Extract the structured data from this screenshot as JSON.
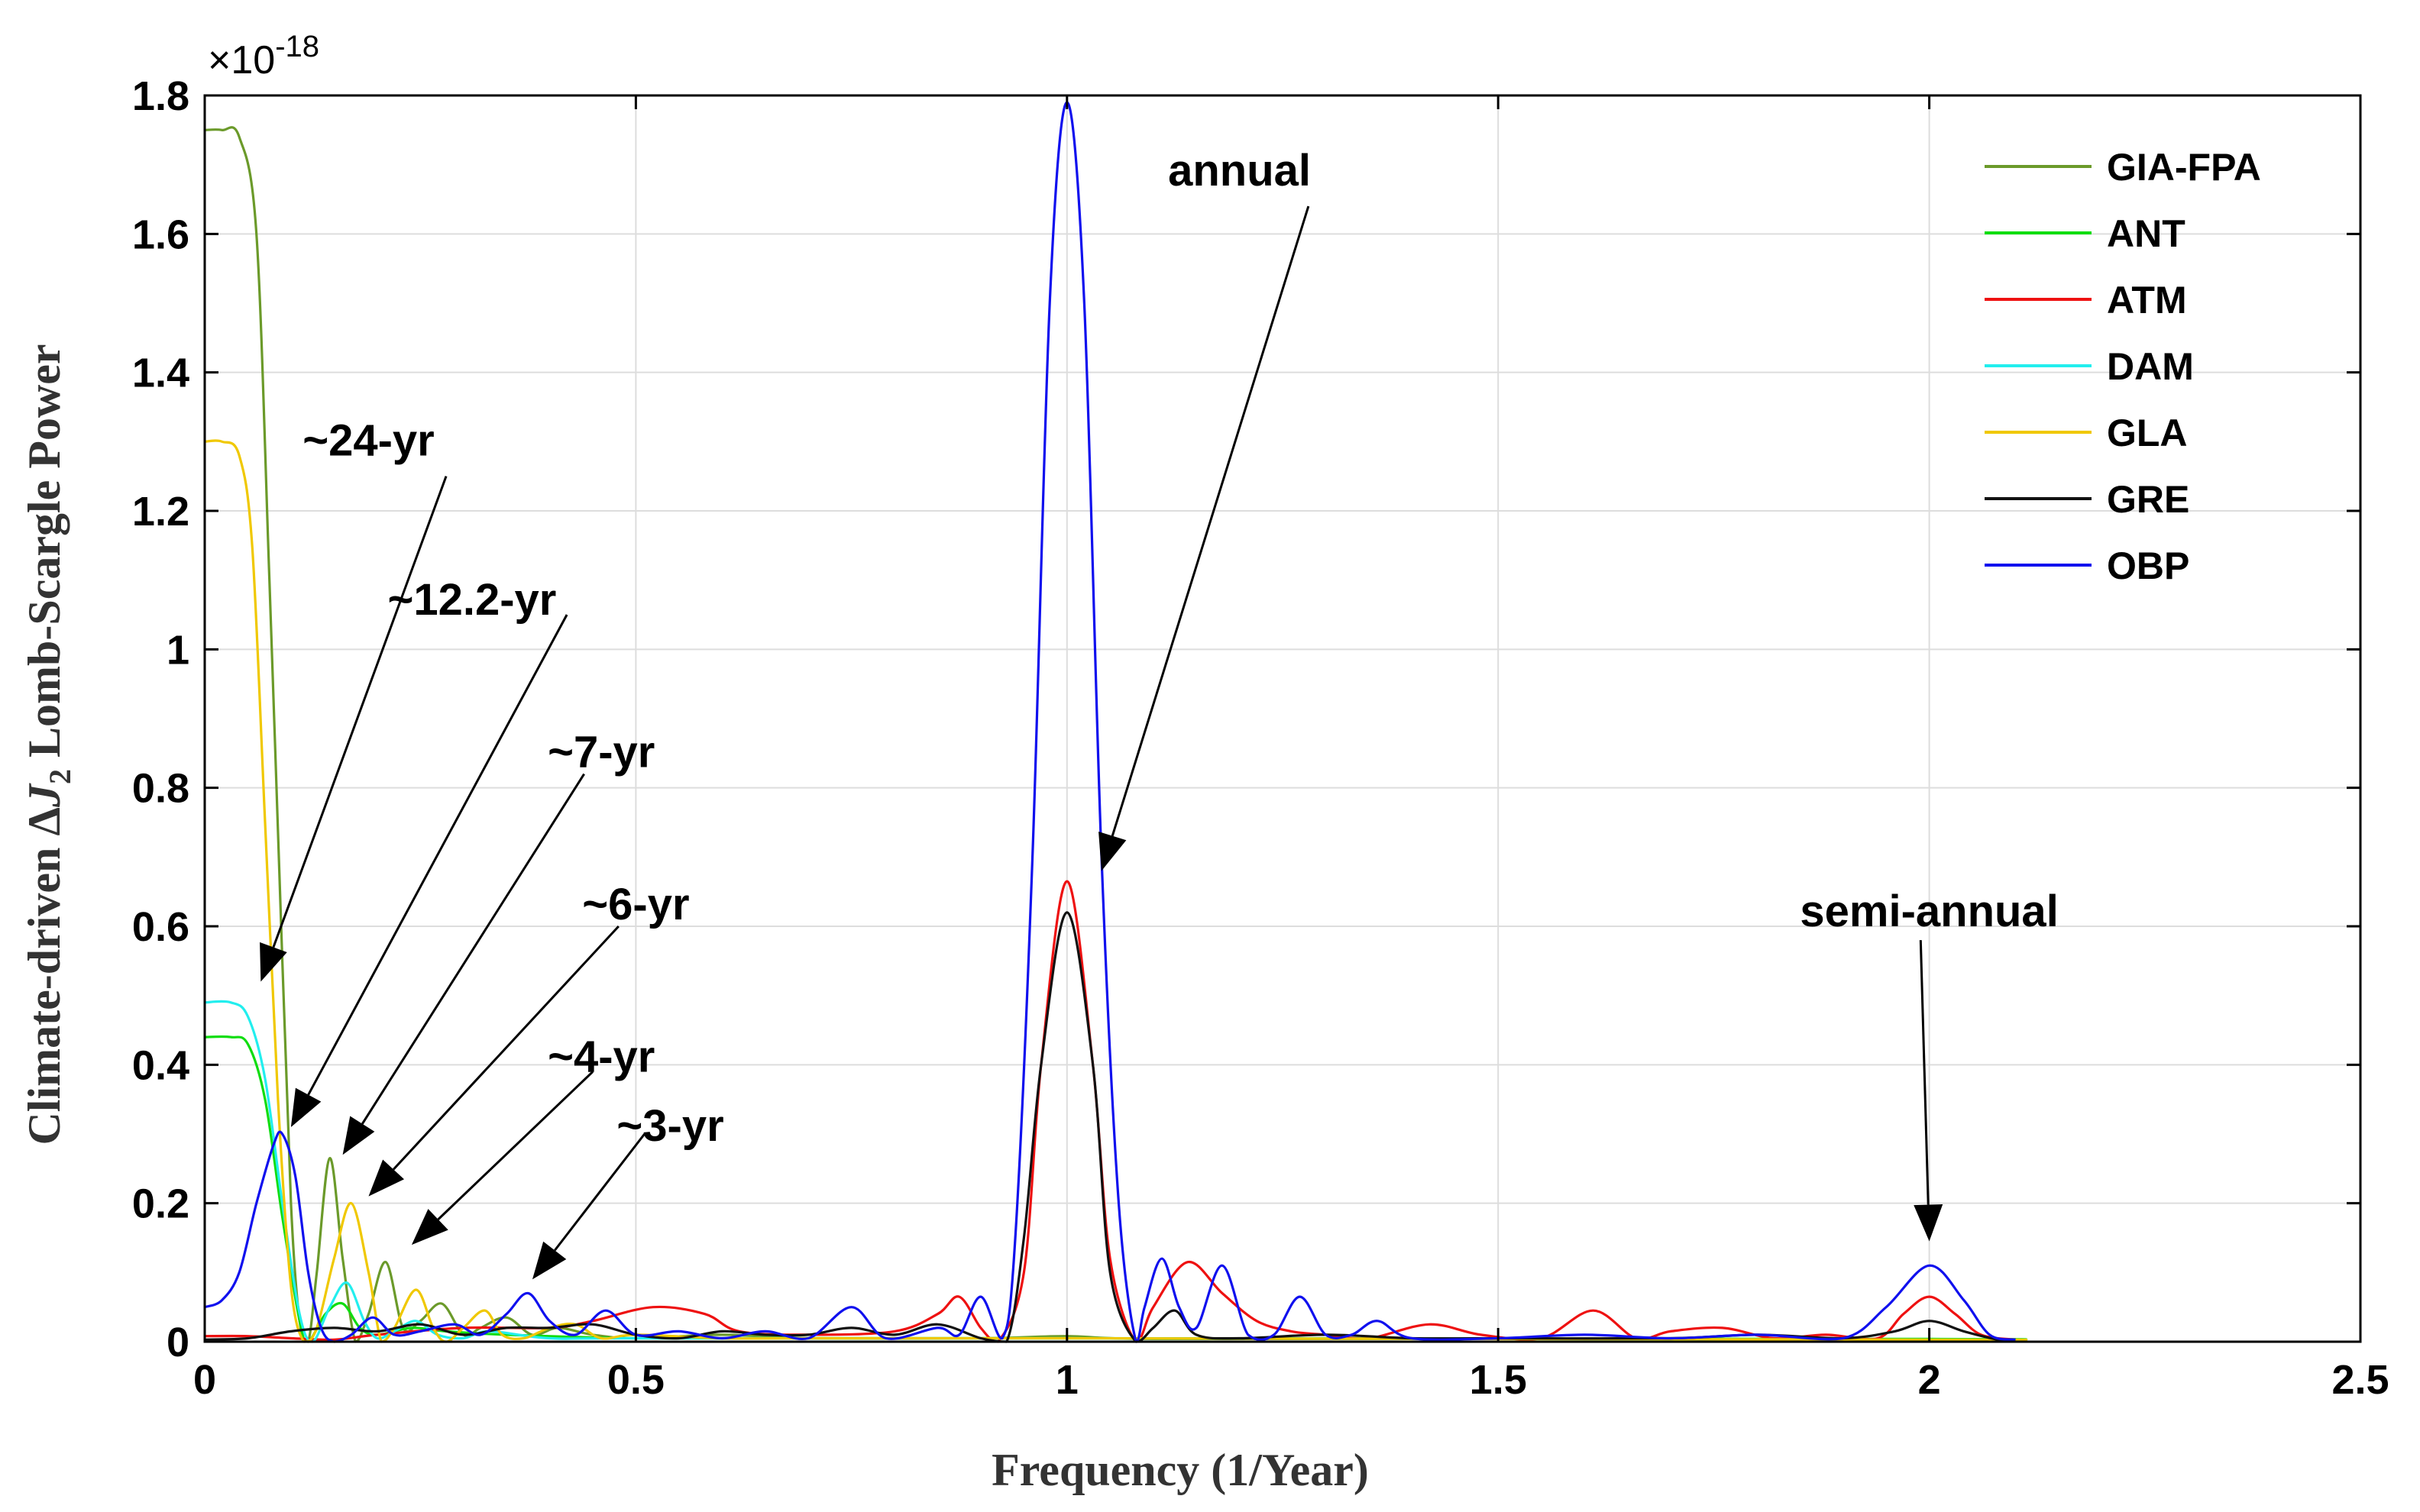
{
  "chart_data": {
    "type": "line",
    "xlabel": "Frequency (1/Year)",
    "ylabel": {
      "prefix": "Climate-driven ",
      "delta": "Δ",
      "symbol": "J",
      "subscript": "2",
      "suffix": " Lomb-Scargle Power"
    },
    "exponent_label": "×10",
    "exponent_power": "-18",
    "xlim": [
      0,
      2.5
    ],
    "ylim": [
      0,
      1.8
    ],
    "grid": true,
    "legend_position": "top-right",
    "x_ticks": [
      {
        "value": 0,
        "label": "0"
      },
      {
        "value": 0.5,
        "label": "0.5"
      },
      {
        "value": 1,
        "label": "1"
      },
      {
        "value": 1.5,
        "label": "1.5"
      },
      {
        "value": 2,
        "label": "2"
      },
      {
        "value": 2.5,
        "label": "2.5"
      }
    ],
    "y_ticks": [
      {
        "value": 0,
        "label": "0"
      },
      {
        "value": 0.2,
        "label": "0.2"
      },
      {
        "value": 0.4,
        "label": "0.4"
      },
      {
        "value": 0.6,
        "label": "0.6"
      },
      {
        "value": 0.8,
        "label": "0.8"
      },
      {
        "value": 1.0,
        "label": "1"
      },
      {
        "value": 1.2,
        "label": "1.2"
      },
      {
        "value": 1.4,
        "label": "1.4"
      },
      {
        "value": 1.6,
        "label": "1.6"
      },
      {
        "value": 1.8,
        "label": "1.8"
      }
    ],
    "series": [
      {
        "name": "GIA-FPA",
        "color": "#6b9a2a",
        "points": [
          [
            0,
            1.75
          ],
          [
            0.02,
            1.75
          ],
          [
            0.04,
            1.74
          ],
          [
            0.06,
            1.6
          ],
          [
            0.075,
            1.1
          ],
          [
            0.09,
            0.55
          ],
          [
            0.1,
            0.2
          ],
          [
            0.11,
            0.03
          ],
          [
            0.12,
            0.0
          ],
          [
            0.13,
            0.1
          ],
          [
            0.145,
            0.265
          ],
          [
            0.16,
            0.12
          ],
          [
            0.175,
            0.0
          ],
          [
            0.19,
            0.04
          ],
          [
            0.21,
            0.115
          ],
          [
            0.23,
            0.02
          ],
          [
            0.25,
            0.03
          ],
          [
            0.275,
            0.055
          ],
          [
            0.3,
            0.01
          ],
          [
            0.32,
            0.02
          ],
          [
            0.35,
            0.035
          ],
          [
            0.38,
            0.01
          ],
          [
            0.41,
            0.02
          ],
          [
            0.45,
            0.01
          ],
          [
            0.5,
            0.005
          ],
          [
            0.6,
            0.01
          ],
          [
            0.7,
            0.005
          ],
          [
            0.9,
            0.005
          ],
          [
            1.0,
            0.008
          ],
          [
            1.1,
            0.004
          ],
          [
            1.5,
            0.004
          ],
          [
            2.0,
            0.003
          ],
          [
            2.1,
            0.003
          ]
        ]
      },
      {
        "name": "ANT",
        "color": "#10dd10",
        "points": [
          [
            0,
            0.44
          ],
          [
            0.03,
            0.44
          ],
          [
            0.05,
            0.43
          ],
          [
            0.07,
            0.35
          ],
          [
            0.09,
            0.18
          ],
          [
            0.11,
            0.03
          ],
          [
            0.12,
            0.0
          ],
          [
            0.14,
            0.04
          ],
          [
            0.16,
            0.055
          ],
          [
            0.18,
            0.02
          ],
          [
            0.2,
            0.01
          ],
          [
            0.24,
            0.02
          ],
          [
            0.28,
            0.015
          ],
          [
            0.35,
            0.01
          ],
          [
            0.5,
            0.005
          ],
          [
            0.7,
            0.005
          ],
          [
            1.0,
            0.005
          ],
          [
            2.0,
            0.004
          ],
          [
            2.1,
            0.003
          ]
        ]
      },
      {
        "name": "ATM",
        "color": "#ee1111",
        "points": [
          [
            0,
            0.008
          ],
          [
            0.05,
            0.008
          ],
          [
            0.1,
            0.005
          ],
          [
            0.15,
            0.003
          ],
          [
            0.2,
            0.01
          ],
          [
            0.3,
            0.02
          ],
          [
            0.4,
            0.02
          ],
          [
            0.45,
            0.03
          ],
          [
            0.52,
            0.05
          ],
          [
            0.58,
            0.04
          ],
          [
            0.62,
            0.015
          ],
          [
            0.7,
            0.01
          ],
          [
            0.8,
            0.015
          ],
          [
            0.85,
            0.04
          ],
          [
            0.875,
            0.065
          ],
          [
            0.9,
            0.02
          ],
          [
            0.92,
            0.0
          ],
          [
            0.95,
            0.1
          ],
          [
            0.97,
            0.4
          ],
          [
            1.0,
            0.665
          ],
          [
            1.03,
            0.4
          ],
          [
            1.05,
            0.12
          ],
          [
            1.08,
            0.0
          ],
          [
            1.1,
            0.05
          ],
          [
            1.14,
            0.115
          ],
          [
            1.18,
            0.07
          ],
          [
            1.22,
            0.03
          ],
          [
            1.26,
            0.015
          ],
          [
            1.3,
            0.01
          ],
          [
            1.35,
            0.005
          ],
          [
            1.42,
            0.025
          ],
          [
            1.48,
            0.01
          ],
          [
            1.55,
            0.005
          ],
          [
            1.61,
            0.045
          ],
          [
            1.66,
            0.005
          ],
          [
            1.7,
            0.015
          ],
          [
            1.76,
            0.02
          ],
          [
            1.82,
            0.005
          ],
          [
            1.88,
            0.01
          ],
          [
            1.94,
            0.005
          ],
          [
            1.97,
            0.04
          ],
          [
            2.0,
            0.065
          ],
          [
            2.03,
            0.04
          ],
          [
            2.06,
            0.01
          ],
          [
            2.1,
            0.003
          ]
        ]
      },
      {
        "name": "DAM",
        "color": "#22eeee",
        "points": [
          [
            0,
            0.49
          ],
          [
            0.03,
            0.49
          ],
          [
            0.05,
            0.47
          ],
          [
            0.07,
            0.38
          ],
          [
            0.09,
            0.2
          ],
          [
            0.11,
            0.04
          ],
          [
            0.125,
            0.0
          ],
          [
            0.145,
            0.05
          ],
          [
            0.165,
            0.085
          ],
          [
            0.185,
            0.03
          ],
          [
            0.2,
            0.005
          ],
          [
            0.22,
            0.015
          ],
          [
            0.245,
            0.03
          ],
          [
            0.27,
            0.01
          ],
          [
            0.3,
            0.005
          ],
          [
            0.33,
            0.015
          ],
          [
            0.4,
            0.005
          ],
          [
            0.5,
            0.005
          ],
          [
            1.0,
            0.005
          ],
          [
            2.0,
            0.003
          ],
          [
            2.1,
            0.003
          ]
        ]
      },
      {
        "name": "GLA",
        "color": "#f0c800",
        "points": [
          [
            0,
            1.3
          ],
          [
            0.02,
            1.3
          ],
          [
            0.04,
            1.28
          ],
          [
            0.055,
            1.15
          ],
          [
            0.07,
            0.75
          ],
          [
            0.085,
            0.35
          ],
          [
            0.1,
            0.08
          ],
          [
            0.115,
            0.0
          ],
          [
            0.13,
            0.02
          ],
          [
            0.15,
            0.12
          ],
          [
            0.17,
            0.2
          ],
          [
            0.19,
            0.1
          ],
          [
            0.205,
            0.0
          ],
          [
            0.22,
            0.02
          ],
          [
            0.245,
            0.075
          ],
          [
            0.265,
            0.02
          ],
          [
            0.28,
            0.0
          ],
          [
            0.3,
            0.02
          ],
          [
            0.325,
            0.045
          ],
          [
            0.345,
            0.01
          ],
          [
            0.37,
            0.005
          ],
          [
            0.4,
            0.02
          ],
          [
            0.43,
            0.025
          ],
          [
            0.46,
            0.005
          ],
          [
            0.5,
            0.01
          ],
          [
            0.6,
            0.005
          ],
          [
            0.7,
            0.005
          ],
          [
            1.0,
            0.005
          ],
          [
            2.0,
            0.003
          ],
          [
            2.1,
            0.003
          ]
        ]
      },
      {
        "name": "GRE",
        "color": "#111111",
        "points": [
          [
            0,
            0.003
          ],
          [
            0.05,
            0.005
          ],
          [
            0.1,
            0.015
          ],
          [
            0.15,
            0.02
          ],
          [
            0.2,
            0.015
          ],
          [
            0.25,
            0.025
          ],
          [
            0.3,
            0.01
          ],
          [
            0.35,
            0.02
          ],
          [
            0.4,
            0.02
          ],
          [
            0.45,
            0.025
          ],
          [
            0.5,
            0.01
          ],
          [
            0.55,
            0.005
          ],
          [
            0.6,
            0.015
          ],
          [
            0.65,
            0.01
          ],
          [
            0.7,
            0.01
          ],
          [
            0.75,
            0.02
          ],
          [
            0.8,
            0.01
          ],
          [
            0.85,
            0.025
          ],
          [
            0.9,
            0.005
          ],
          [
            0.93,
            0.0
          ],
          [
            0.95,
            0.15
          ],
          [
            0.97,
            0.4
          ],
          [
            1.0,
            0.62
          ],
          [
            1.03,
            0.4
          ],
          [
            1.05,
            0.1
          ],
          [
            1.08,
            0.0
          ],
          [
            1.1,
            0.02
          ],
          [
            1.125,
            0.045
          ],
          [
            1.15,
            0.01
          ],
          [
            1.2,
            0.005
          ],
          [
            1.3,
            0.01
          ],
          [
            1.4,
            0.005
          ],
          [
            1.5,
            0.005
          ],
          [
            1.7,
            0.005
          ],
          [
            1.8,
            0.01
          ],
          [
            1.9,
            0.005
          ],
          [
            1.96,
            0.015
          ],
          [
            2.0,
            0.03
          ],
          [
            2.04,
            0.015
          ],
          [
            2.08,
            0.003
          ],
          [
            2.1,
            0.003
          ]
        ]
      },
      {
        "name": "OBP",
        "color": "#1010ee",
        "points": [
          [
            0,
            0.05
          ],
          [
            0.02,
            0.06
          ],
          [
            0.04,
            0.1
          ],
          [
            0.06,
            0.2
          ],
          [
            0.08,
            0.285
          ],
          [
            0.09,
            0.3
          ],
          [
            0.105,
            0.24
          ],
          [
            0.12,
            0.1
          ],
          [
            0.135,
            0.02
          ],
          [
            0.15,
            0.0
          ],
          [
            0.17,
            0.01
          ],
          [
            0.195,
            0.035
          ],
          [
            0.22,
            0.01
          ],
          [
            0.25,
            0.015
          ],
          [
            0.29,
            0.025
          ],
          [
            0.32,
            0.01
          ],
          [
            0.35,
            0.04
          ],
          [
            0.375,
            0.07
          ],
          [
            0.4,
            0.03
          ],
          [
            0.43,
            0.01
          ],
          [
            0.465,
            0.045
          ],
          [
            0.5,
            0.01
          ],
          [
            0.55,
            0.015
          ],
          [
            0.6,
            0.005
          ],
          [
            0.65,
            0.015
          ],
          [
            0.7,
            0.005
          ],
          [
            0.75,
            0.05
          ],
          [
            0.79,
            0.005
          ],
          [
            0.85,
            0.02
          ],
          [
            0.875,
            0.01
          ],
          [
            0.9,
            0.065
          ],
          [
            0.925,
            0.005
          ],
          [
            0.94,
            0.15
          ],
          [
            0.96,
            0.7
          ],
          [
            0.98,
            1.5
          ],
          [
            1.0,
            1.79
          ],
          [
            1.02,
            1.5
          ],
          [
            1.04,
            0.7
          ],
          [
            1.06,
            0.2
          ],
          [
            1.08,
            0.0
          ],
          [
            1.09,
            0.05
          ],
          [
            1.11,
            0.12
          ],
          [
            1.13,
            0.05
          ],
          [
            1.15,
            0.02
          ],
          [
            1.18,
            0.11
          ],
          [
            1.21,
            0.01
          ],
          [
            1.24,
            0.01
          ],
          [
            1.27,
            0.065
          ],
          [
            1.3,
            0.01
          ],
          [
            1.33,
            0.01
          ],
          [
            1.36,
            0.03
          ],
          [
            1.4,
            0.005
          ],
          [
            1.5,
            0.005
          ],
          [
            1.6,
            0.01
          ],
          [
            1.7,
            0.005
          ],
          [
            1.8,
            0.01
          ],
          [
            1.9,
            0.005
          ],
          [
            1.95,
            0.05
          ],
          [
            2.0,
            0.11
          ],
          [
            2.04,
            0.06
          ],
          [
            2.07,
            0.01
          ],
          [
            2.1,
            0.003
          ]
        ]
      }
    ],
    "annotations": [
      {
        "text": "~24-yr",
        "label_at": [
          0.19,
          1.28
        ],
        "arrow_from": [
          0.28,
          1.25
        ],
        "arrow_to": [
          0.065,
          0.52
        ]
      },
      {
        "text": "~12.2-yr",
        "label_at": [
          0.31,
          1.05
        ],
        "arrow_from": [
          0.42,
          1.05
        ],
        "arrow_to": [
          0.1,
          0.31
        ]
      },
      {
        "text": "~7-yr",
        "label_at": [
          0.46,
          0.83
        ],
        "arrow_from": [
          0.44,
          0.82
        ],
        "arrow_to": [
          0.16,
          0.27
        ]
      },
      {
        "text": "~6-yr",
        "label_at": [
          0.5,
          0.61
        ],
        "arrow_from": [
          0.48,
          0.6
        ],
        "arrow_to": [
          0.19,
          0.21
        ]
      },
      {
        "text": "~4-yr",
        "label_at": [
          0.46,
          0.39
        ],
        "arrow_from": [
          0.45,
          0.39
        ],
        "arrow_to": [
          0.24,
          0.14
        ]
      },
      {
        "text": "~3-yr",
        "label_at": [
          0.54,
          0.29
        ],
        "arrow_from": [
          0.51,
          0.3
        ],
        "arrow_to": [
          0.38,
          0.09
        ]
      },
      {
        "text": "annual",
        "label_at": [
          1.2,
          1.67
        ],
        "arrow_from": [
          1.28,
          1.64
        ],
        "arrow_to": [
          1.04,
          0.68
        ]
      },
      {
        "text": "semi-annual",
        "label_at": [
          2.0,
          0.6
        ],
        "arrow_from": [
          1.99,
          0.58
        ],
        "arrow_to": [
          2.0,
          0.145
        ]
      }
    ]
  }
}
